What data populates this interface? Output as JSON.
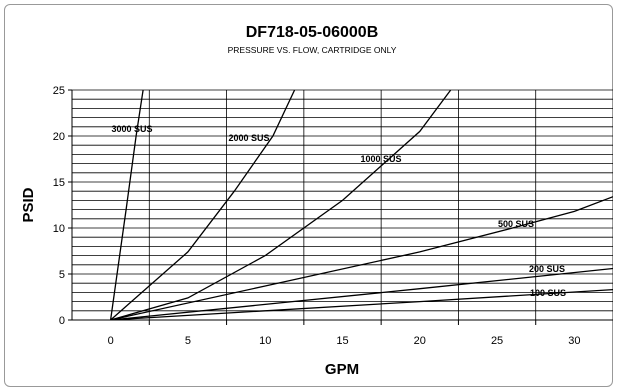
{
  "chart_data": {
    "type": "line",
    "title": "DF718-05-06000B",
    "subtitle": "PRESSURE VS. FLOW, CARTRIDGE ONLY",
    "xlabel": "GPM",
    "ylabel": "PSID",
    "xlim": [
      -2.5,
      32.5
    ],
    "ylim": [
      0,
      25
    ],
    "xticks": [
      0,
      5,
      10,
      15,
      20,
      25,
      30
    ],
    "yticks": [
      0,
      5,
      10,
      15,
      20,
      25
    ],
    "x_major_gridlines": [
      2.5,
      7.5,
      12.5,
      17.5,
      22.5,
      27.5
    ],
    "y_minor_step": 1,
    "grid": true,
    "legend": "none",
    "line_color": "#000000",
    "series": [
      {
        "name": "3000 SUS",
        "points": [
          [
            0,
            0
          ],
          [
            1,
            12
          ],
          [
            1.65,
            20
          ],
          [
            2.1,
            25
          ]
        ]
      },
      {
        "name": "2000 SUS",
        "points": [
          [
            0,
            0
          ],
          [
            5,
            7.4
          ],
          [
            8,
            14
          ],
          [
            10.5,
            20
          ],
          [
            11.9,
            25
          ]
        ]
      },
      {
        "name": "1000 SUS",
        "points": [
          [
            0,
            0
          ],
          [
            5,
            2.4
          ],
          [
            10,
            7
          ],
          [
            15,
            13
          ],
          [
            18,
            17.5
          ],
          [
            20,
            20.5
          ],
          [
            22,
            25
          ]
        ]
      },
      {
        "name": "500 SUS",
        "points": [
          [
            0,
            0
          ],
          [
            10,
            3.7
          ],
          [
            20,
            7.4
          ],
          [
            26,
            10
          ],
          [
            30,
            11.8
          ],
          [
            32.5,
            13.4
          ]
        ]
      },
      {
        "name": "200 SUS",
        "points": [
          [
            0,
            0
          ],
          [
            10,
            1.7
          ],
          [
            20,
            3.4
          ],
          [
            32.5,
            5.6
          ]
        ]
      },
      {
        "name": "100 SUS",
        "points": [
          [
            0,
            0
          ],
          [
            10,
            1.0
          ],
          [
            20,
            2.0
          ],
          [
            32.5,
            3.3
          ]
        ]
      }
    ]
  }
}
